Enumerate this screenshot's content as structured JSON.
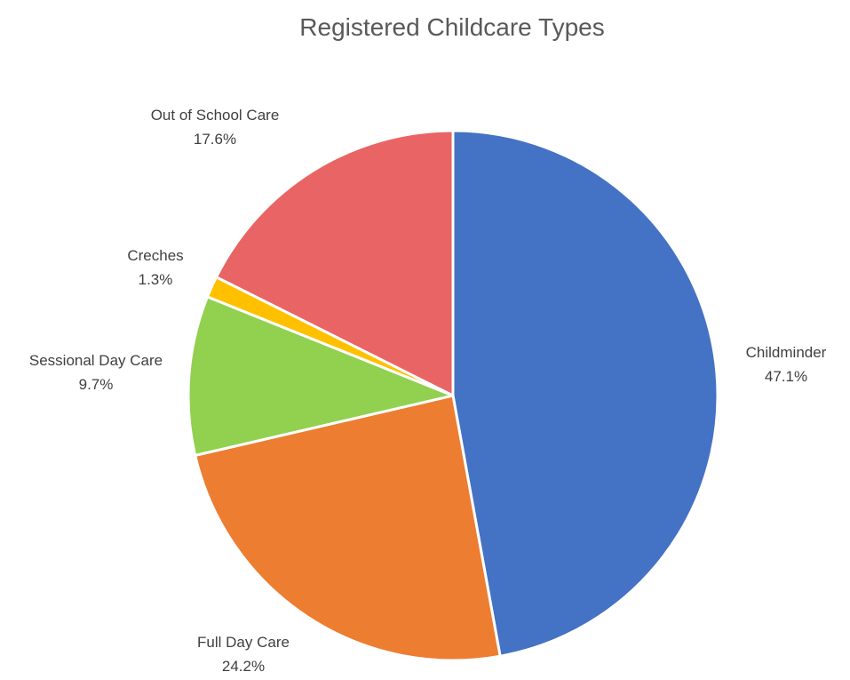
{
  "chart_data": {
    "type": "pie",
    "title": "Registered Childcare Types",
    "slices": [
      {
        "label": "Childminder",
        "value": 47.1,
        "display": "47.1%",
        "color": "#4472C4"
      },
      {
        "label": "Full Day Care",
        "value": 24.2,
        "display": "24.2%",
        "color": "#ED7D31"
      },
      {
        "label": "Sessional Day Care",
        "value": 9.7,
        "display": "9.7%",
        "color": "#92D050"
      },
      {
        "label": "Creches",
        "value": 1.3,
        "display": "1.3%",
        "color": "#FFC000"
      },
      {
        "label": "Out of School Care",
        "value": 17.6,
        "display": "17.6%",
        "color": "#E96464"
      }
    ],
    "start_angle_deg": 0,
    "direction": "clockwise",
    "legend": "none",
    "data_labels": "outside"
  }
}
